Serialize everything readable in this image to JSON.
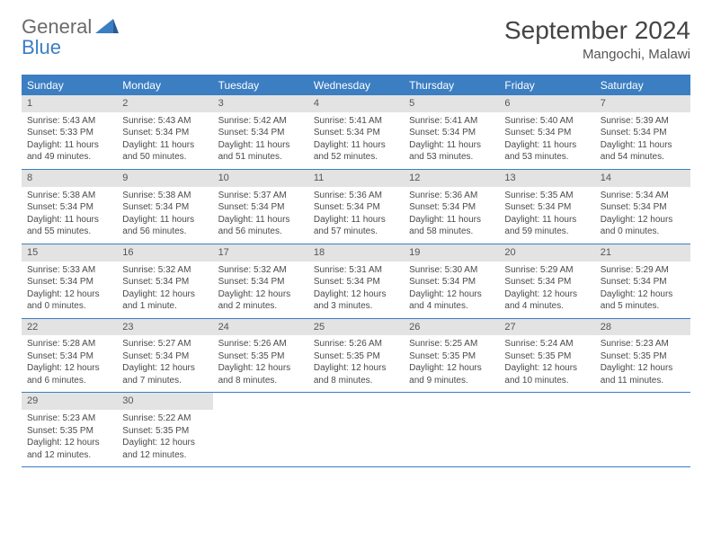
{
  "logo": {
    "line1": "General",
    "line2": "Blue"
  },
  "title": "September 2024",
  "location": "Mangochi, Malawi",
  "weekdays": [
    "Sunday",
    "Monday",
    "Tuesday",
    "Wednesday",
    "Thursday",
    "Friday",
    "Saturday"
  ],
  "colors": {
    "header_bg": "#3b7ec2",
    "daynum_bg": "#e3e3e3",
    "border": "#3b7ec2",
    "text": "#4a4a4a"
  },
  "weeks": [
    [
      {
        "n": "1",
        "r": "Sunrise: 5:43 AM",
        "s": "Sunset: 5:33 PM",
        "d1": "Daylight: 11 hours",
        "d2": "and 49 minutes."
      },
      {
        "n": "2",
        "r": "Sunrise: 5:43 AM",
        "s": "Sunset: 5:34 PM",
        "d1": "Daylight: 11 hours",
        "d2": "and 50 minutes."
      },
      {
        "n": "3",
        "r": "Sunrise: 5:42 AM",
        "s": "Sunset: 5:34 PM",
        "d1": "Daylight: 11 hours",
        "d2": "and 51 minutes."
      },
      {
        "n": "4",
        "r": "Sunrise: 5:41 AM",
        "s": "Sunset: 5:34 PM",
        "d1": "Daylight: 11 hours",
        "d2": "and 52 minutes."
      },
      {
        "n": "5",
        "r": "Sunrise: 5:41 AM",
        "s": "Sunset: 5:34 PM",
        "d1": "Daylight: 11 hours",
        "d2": "and 53 minutes."
      },
      {
        "n": "6",
        "r": "Sunrise: 5:40 AM",
        "s": "Sunset: 5:34 PM",
        "d1": "Daylight: 11 hours",
        "d2": "and 53 minutes."
      },
      {
        "n": "7",
        "r": "Sunrise: 5:39 AM",
        "s": "Sunset: 5:34 PM",
        "d1": "Daylight: 11 hours",
        "d2": "and 54 minutes."
      }
    ],
    [
      {
        "n": "8",
        "r": "Sunrise: 5:38 AM",
        "s": "Sunset: 5:34 PM",
        "d1": "Daylight: 11 hours",
        "d2": "and 55 minutes."
      },
      {
        "n": "9",
        "r": "Sunrise: 5:38 AM",
        "s": "Sunset: 5:34 PM",
        "d1": "Daylight: 11 hours",
        "d2": "and 56 minutes."
      },
      {
        "n": "10",
        "r": "Sunrise: 5:37 AM",
        "s": "Sunset: 5:34 PM",
        "d1": "Daylight: 11 hours",
        "d2": "and 56 minutes."
      },
      {
        "n": "11",
        "r": "Sunrise: 5:36 AM",
        "s": "Sunset: 5:34 PM",
        "d1": "Daylight: 11 hours",
        "d2": "and 57 minutes."
      },
      {
        "n": "12",
        "r": "Sunrise: 5:36 AM",
        "s": "Sunset: 5:34 PM",
        "d1": "Daylight: 11 hours",
        "d2": "and 58 minutes."
      },
      {
        "n": "13",
        "r": "Sunrise: 5:35 AM",
        "s": "Sunset: 5:34 PM",
        "d1": "Daylight: 11 hours",
        "d2": "and 59 minutes."
      },
      {
        "n": "14",
        "r": "Sunrise: 5:34 AM",
        "s": "Sunset: 5:34 PM",
        "d1": "Daylight: 12 hours",
        "d2": "and 0 minutes."
      }
    ],
    [
      {
        "n": "15",
        "r": "Sunrise: 5:33 AM",
        "s": "Sunset: 5:34 PM",
        "d1": "Daylight: 12 hours",
        "d2": "and 0 minutes."
      },
      {
        "n": "16",
        "r": "Sunrise: 5:32 AM",
        "s": "Sunset: 5:34 PM",
        "d1": "Daylight: 12 hours",
        "d2": "and 1 minute."
      },
      {
        "n": "17",
        "r": "Sunrise: 5:32 AM",
        "s": "Sunset: 5:34 PM",
        "d1": "Daylight: 12 hours",
        "d2": "and 2 minutes."
      },
      {
        "n": "18",
        "r": "Sunrise: 5:31 AM",
        "s": "Sunset: 5:34 PM",
        "d1": "Daylight: 12 hours",
        "d2": "and 3 minutes."
      },
      {
        "n": "19",
        "r": "Sunrise: 5:30 AM",
        "s": "Sunset: 5:34 PM",
        "d1": "Daylight: 12 hours",
        "d2": "and 4 minutes."
      },
      {
        "n": "20",
        "r": "Sunrise: 5:29 AM",
        "s": "Sunset: 5:34 PM",
        "d1": "Daylight: 12 hours",
        "d2": "and 4 minutes."
      },
      {
        "n": "21",
        "r": "Sunrise: 5:29 AM",
        "s": "Sunset: 5:34 PM",
        "d1": "Daylight: 12 hours",
        "d2": "and 5 minutes."
      }
    ],
    [
      {
        "n": "22",
        "r": "Sunrise: 5:28 AM",
        "s": "Sunset: 5:34 PM",
        "d1": "Daylight: 12 hours",
        "d2": "and 6 minutes."
      },
      {
        "n": "23",
        "r": "Sunrise: 5:27 AM",
        "s": "Sunset: 5:34 PM",
        "d1": "Daylight: 12 hours",
        "d2": "and 7 minutes."
      },
      {
        "n": "24",
        "r": "Sunrise: 5:26 AM",
        "s": "Sunset: 5:35 PM",
        "d1": "Daylight: 12 hours",
        "d2": "and 8 minutes."
      },
      {
        "n": "25",
        "r": "Sunrise: 5:26 AM",
        "s": "Sunset: 5:35 PM",
        "d1": "Daylight: 12 hours",
        "d2": "and 8 minutes."
      },
      {
        "n": "26",
        "r": "Sunrise: 5:25 AM",
        "s": "Sunset: 5:35 PM",
        "d1": "Daylight: 12 hours",
        "d2": "and 9 minutes."
      },
      {
        "n": "27",
        "r": "Sunrise: 5:24 AM",
        "s": "Sunset: 5:35 PM",
        "d1": "Daylight: 12 hours",
        "d2": "and 10 minutes."
      },
      {
        "n": "28",
        "r": "Sunrise: 5:23 AM",
        "s": "Sunset: 5:35 PM",
        "d1": "Daylight: 12 hours",
        "d2": "and 11 minutes."
      }
    ],
    [
      {
        "n": "29",
        "r": "Sunrise: 5:23 AM",
        "s": "Sunset: 5:35 PM",
        "d1": "Daylight: 12 hours",
        "d2": "and 12 minutes."
      },
      {
        "n": "30",
        "r": "Sunrise: 5:22 AM",
        "s": "Sunset: 5:35 PM",
        "d1": "Daylight: 12 hours",
        "d2": "and 12 minutes."
      },
      null,
      null,
      null,
      null,
      null
    ]
  ]
}
